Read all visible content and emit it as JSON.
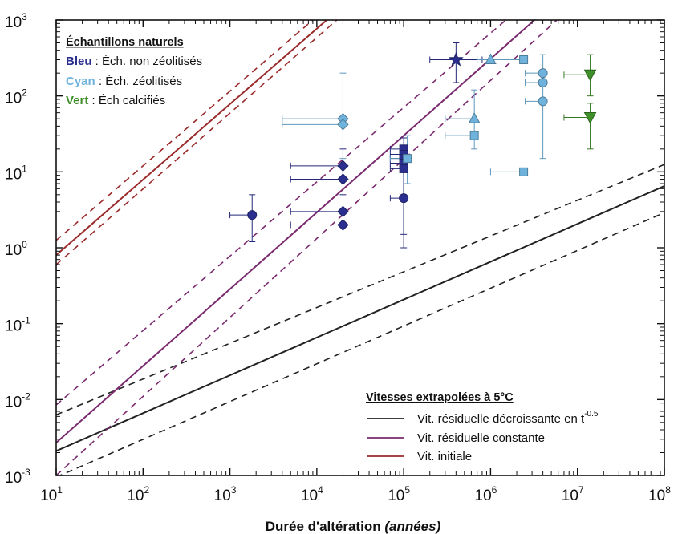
{
  "chart_data": {
    "type": "scatter",
    "xlabel": "Durée d'altération",
    "xlabel_unit": "(années)",
    "ylabel": "",
    "xscale": "log",
    "yscale": "log",
    "xlim": [
      10,
      100000000
    ],
    "ylim": [
      0.001,
      1000
    ],
    "grid": false,
    "x_ticks": [
      {
        "base": "10",
        "exp": "1"
      },
      {
        "base": "10",
        "exp": "2"
      },
      {
        "base": "10",
        "exp": "3"
      },
      {
        "base": "10",
        "exp": "4"
      },
      {
        "base": "10",
        "exp": "5"
      },
      {
        "base": "10",
        "exp": "6"
      },
      {
        "base": "10",
        "exp": "7"
      },
      {
        "base": "10",
        "exp": "8"
      }
    ],
    "y_ticks": [
      {
        "base": "10",
        "exp": "-3"
      },
      {
        "base": "10",
        "exp": "-2"
      },
      {
        "base": "10",
        "exp": "-1"
      },
      {
        "base": "10",
        "exp": "0"
      },
      {
        "base": "10",
        "exp": "1"
      },
      {
        "base": "10",
        "exp": "2"
      },
      {
        "base": "10",
        "exp": "3"
      }
    ],
    "legend_samples": {
      "title": "Échantillons naturels",
      "placement": "top-left",
      "entries": [
        {
          "key": "Bleu",
          "desc": " : Éch. non zéolitisés",
          "color": "#2a2f8f"
        },
        {
          "key": "Cyan",
          "desc": " : Éch. zéolitisés",
          "color": "#6fb3dc"
        },
        {
          "key": "Vert",
          "desc": " : Éch calcifiés",
          "color": "#3f8f2a"
        }
      ]
    },
    "legend_lines": {
      "title": "Vitesses extrapolées à 5°C",
      "placement": "bottom-right",
      "entries": [
        {
          "label": "Vit. résiduelle décroissante en t",
          "sup": "-0.5",
          "color": "#222222"
        },
        {
          "label": "Vit. résiduelle constante",
          "color": "#7a2a6e"
        },
        {
          "label": "Vit. initiale",
          "color": "#9a2a2a"
        }
      ]
    },
    "lines": [
      {
        "name": "Vit. résiduelle décroissante en t-0.5",
        "color": "#222222",
        "points": [
          [
            10,
            0.0021
          ],
          [
            100000000,
            6.5
          ]
        ],
        "bounds": [
          [
            [
              10,
              0.0063
            ],
            [
              100000000,
              12.5
            ]
          ],
          [
            [
              10,
              0.00095
            ],
            [
              100000000,
              2.9
            ]
          ]
        ]
      },
      {
        "name": "Vit. résiduelle constante",
        "color": "#7a2a6e",
        "points": [
          [
            10,
            0.0027
          ],
          [
            3200000,
            1000
          ]
        ],
        "bounds": [
          [
            [
              10,
              0.0085
            ],
            [
              1500000,
              1000
            ]
          ],
          [
            [
              10,
              0.001
            ],
            [
              5800000,
              1000
            ]
          ]
        ]
      },
      {
        "name": "Vit. initiale",
        "color": "#9a2a2a",
        "points": [
          [
            10,
            0.8
          ],
          [
            13000,
            1000
          ]
        ],
        "bounds": [
          [
            [
              10,
              1.25
            ],
            [
              9000,
              1000
            ]
          ],
          [
            [
              10,
              0.6
            ],
            [
              17000,
              1000
            ]
          ]
        ]
      }
    ],
    "series": [
      {
        "name": "Bleu",
        "color": "#2a2f8f",
        "points": [
          {
            "x": 1800,
            "y": 2.7,
            "marker": "circle",
            "xerr": [
              1000,
              1800
            ],
            "yerr": [
              1.2,
              5
            ]
          },
          {
            "x": 20000,
            "y": 12,
            "marker": "diamond",
            "xerr": [
              5000,
              20000
            ],
            "yerr": [
              8,
              20
            ]
          },
          {
            "x": 20000,
            "y": 8,
            "marker": "diamond",
            "xerr": [
              5000,
              20000
            ],
            "yerr": [
              5,
              12
            ]
          },
          {
            "x": 20000,
            "y": 3,
            "marker": "diamond",
            "xerr": [
              5000,
              20000
            ],
            "yerr": null
          },
          {
            "x": 20000,
            "y": 2,
            "marker": "diamond",
            "xerr": [
              5000,
              20000
            ],
            "yerr": null
          },
          {
            "x": 100000,
            "y": 20,
            "marker": "square",
            "xerr": [
              70000,
              100000
            ],
            "yerr": [
              1,
              28
            ]
          },
          {
            "x": 100000,
            "y": 17,
            "marker": "square",
            "xerr": [
              70000,
              100000
            ],
            "yerr": null
          },
          {
            "x": 100000,
            "y": 15,
            "marker": "square",
            "xerr": [
              70000,
              100000
            ],
            "yerr": null
          },
          {
            "x": 100000,
            "y": 13,
            "marker": "square",
            "xerr": [
              70000,
              100000
            ],
            "yerr": null
          },
          {
            "x": 100000,
            "y": 11,
            "marker": "square",
            "xerr": [
              70000,
              100000
            ],
            "yerr": null
          },
          {
            "x": 100000,
            "y": 4.5,
            "marker": "circle",
            "xerr": [
              70000,
              100000
            ],
            "yerr": [
              1.5,
              15
            ]
          },
          {
            "x": 400000,
            "y": 300,
            "marker": "star",
            "xerr": [
              200000,
              800000
            ],
            "yerr": [
              150,
              500
            ]
          }
        ]
      },
      {
        "name": "Cyan",
        "color": "#6fb3dc",
        "points": [
          {
            "x": 20000,
            "y": 50,
            "marker": "diamond",
            "xerr": [
              4000,
              20000
            ],
            "yerr": [
              15,
              200
            ]
          },
          {
            "x": 20000,
            "y": 42,
            "marker": "diamond",
            "xerr": [
              4000,
              20000
            ],
            "yerr": null
          },
          {
            "x": 110000,
            "y": 15,
            "marker": "square",
            "xerr": [
              70000,
              110000
            ],
            "yerr": [
              7,
              30
            ]
          },
          {
            "x": 650000,
            "y": 50,
            "marker": "triangle",
            "xerr": [
              300000,
              650000
            ],
            "yerr": [
              20,
              120
            ]
          },
          {
            "x": 650000,
            "y": 30,
            "marker": "square",
            "xerr": [
              300000,
              650000
            ],
            "yerr": null
          },
          {
            "x": 1000000,
            "y": 300,
            "marker": "triangle",
            "xerr": [
              700000,
              1000000
            ],
            "yerr": null
          },
          {
            "x": 2400000,
            "y": 300,
            "marker": "square",
            "xerr": [
              1000000,
              2400000
            ],
            "yerr": null
          },
          {
            "x": 2400000,
            "y": 10,
            "marker": "square",
            "xerr": [
              1000000,
              2400000
            ],
            "yerr": null
          },
          {
            "x": 4000000,
            "y": 200,
            "marker": "circle",
            "xerr": [
              2500000,
              4000000
            ],
            "yerr": [
              15,
              350
            ]
          },
          {
            "x": 4000000,
            "y": 150,
            "marker": "circle",
            "xerr": [
              2500000,
              4000000
            ],
            "yerr": null
          },
          {
            "x": 4000000,
            "y": 85,
            "marker": "circle",
            "xerr": [
              2500000,
              4000000
            ],
            "yerr": null
          }
        ]
      },
      {
        "name": "Vert",
        "color": "#3f8f2a",
        "points": [
          {
            "x": 14000000,
            "y": 190,
            "marker": "triangle_down",
            "xerr": [
              7000000,
              14000000
            ],
            "yerr": [
              100,
              350
            ]
          },
          {
            "x": 14000000,
            "y": 52,
            "marker": "triangle_down",
            "xerr": [
              7000000,
              14000000
            ],
            "yerr": [
              20,
              80
            ]
          }
        ]
      }
    ]
  }
}
